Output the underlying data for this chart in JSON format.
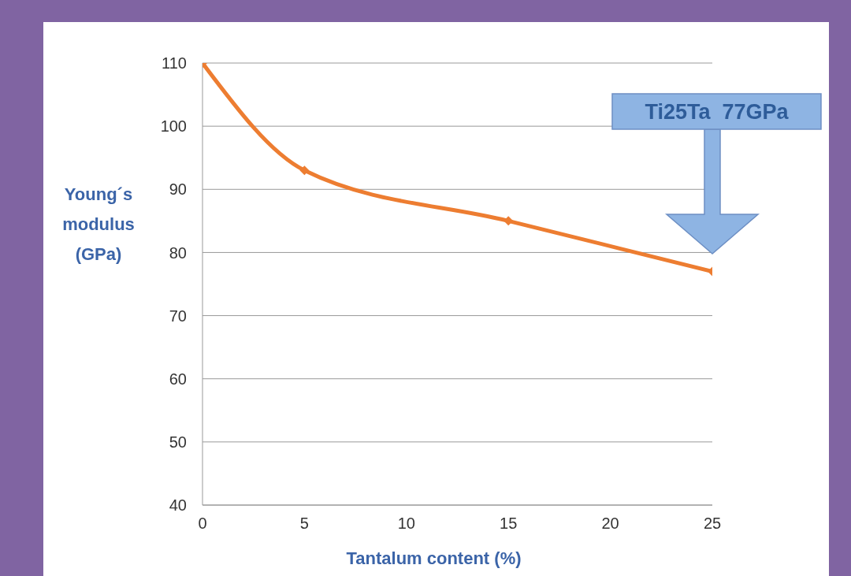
{
  "chart_data": {
    "type": "line",
    "xlabel": "Tantalum content (%)",
    "ylabel": "Young´s modulus (GPa)",
    "x": [
      0,
      5,
      15,
      25
    ],
    "series": [
      {
        "color": "#ed7d31",
        "values": [
          110,
          93,
          85,
          77
        ]
      }
    ],
    "xlim": [
      0,
      25
    ],
    "xticks": [
      0,
      5,
      10,
      15,
      20,
      25
    ],
    "ylim": [
      40,
      110
    ],
    "yticks": [
      40,
      50,
      60,
      70,
      80,
      90,
      100,
      110
    ],
    "grid": "y",
    "marker": "diamond",
    "line_style": "solid",
    "annotations": [
      "Ti25Ta  77GPa"
    ]
  }
}
